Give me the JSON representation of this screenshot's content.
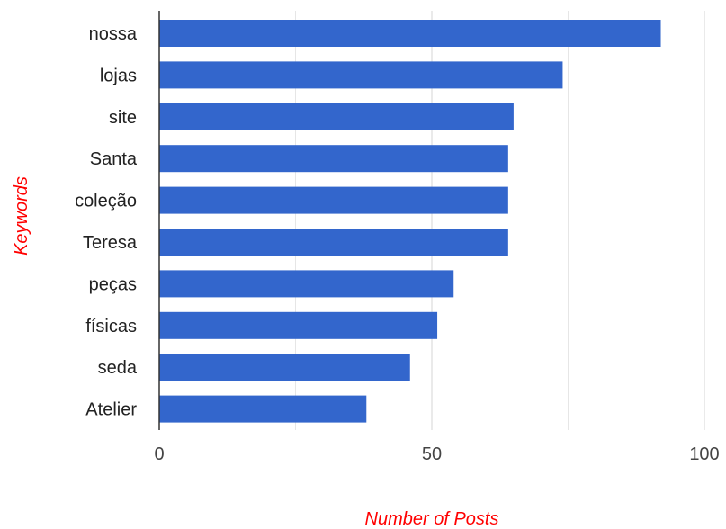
{
  "chart_data": {
    "type": "bar",
    "orientation": "horizontal",
    "categories": [
      "nossa",
      "lojas",
      "site",
      "Santa",
      "coleção",
      "Teresa",
      "peças",
      "físicas",
      "seda",
      "Atelier"
    ],
    "values": [
      92,
      74,
      65,
      64,
      64,
      64,
      54,
      51,
      46,
      38
    ],
    "xlabel": "Number of Posts",
    "ylabel": "Keywords",
    "xlim": [
      0,
      100
    ],
    "x_ticks": [
      0,
      50,
      100
    ],
    "x_tick_labels": [
      "0",
      "50",
      "100"
    ],
    "grid": true,
    "legend": "none",
    "bar_color": "#3366cc",
    "axis_title_color": "#ff0000"
  }
}
